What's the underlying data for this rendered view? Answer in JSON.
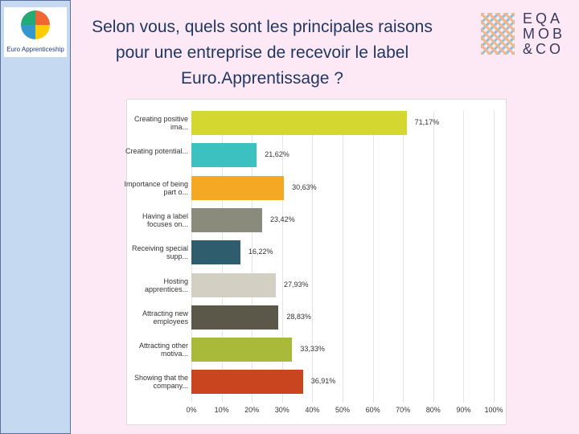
{
  "logo_left": "Euro Apprenticeship",
  "logo_right": [
    "EQA",
    "MOB",
    "&CO"
  ],
  "chart_data": {
    "type": "bar",
    "orientation": "horizontal",
    "title": "Selon vous, quels sont les principales raisons pour une entreprise de recevoir le label Euro.Apprentissage ?",
    "categories": [
      "Creating positive ima...",
      "Creating potential...",
      "Importance of being part o...",
      "Having a label focuses on...",
      "Receiving special supp...",
      "Hosting apprentices...",
      "Attracting new employees",
      "Attracting other motiva...",
      "Showing that the company..."
    ],
    "values": [
      71.17,
      21.62,
      30.63,
      23.42,
      16.22,
      27.93,
      28.83,
      33.33,
      36.91
    ],
    "value_labels": [
      "71,17%",
      "21,62%",
      "30,63%",
      "23,42%",
      "16,22%",
      "27,93%",
      "28,83%",
      "33,33%",
      "36,91%"
    ],
    "colors": [
      "#d3d72f",
      "#3cc0c0",
      "#f5a824",
      "#8b8b7b",
      "#2e5d6d",
      "#d3cfc3",
      "#5b5749",
      "#a9ba3b",
      "#c9451f"
    ],
    "xlim": [
      0,
      100
    ],
    "xticks": [
      {
        "value": 0,
        "label": "0%"
      },
      {
        "value": 10,
        "label": "10%"
      },
      {
        "value": 20,
        "label": "20%"
      },
      {
        "value": 30,
        "label": "30%"
      },
      {
        "value": 40,
        "label": "40%"
      },
      {
        "value": 50,
        "label": "50%"
      },
      {
        "value": 60,
        "label": "60%"
      },
      {
        "value": 70,
        "label": "70%"
      },
      {
        "value": 80,
        "label": "80%"
      },
      {
        "value": 90,
        "label": "90%"
      },
      {
        "value": 100,
        "label": "100%"
      }
    ],
    "grid": true
  }
}
